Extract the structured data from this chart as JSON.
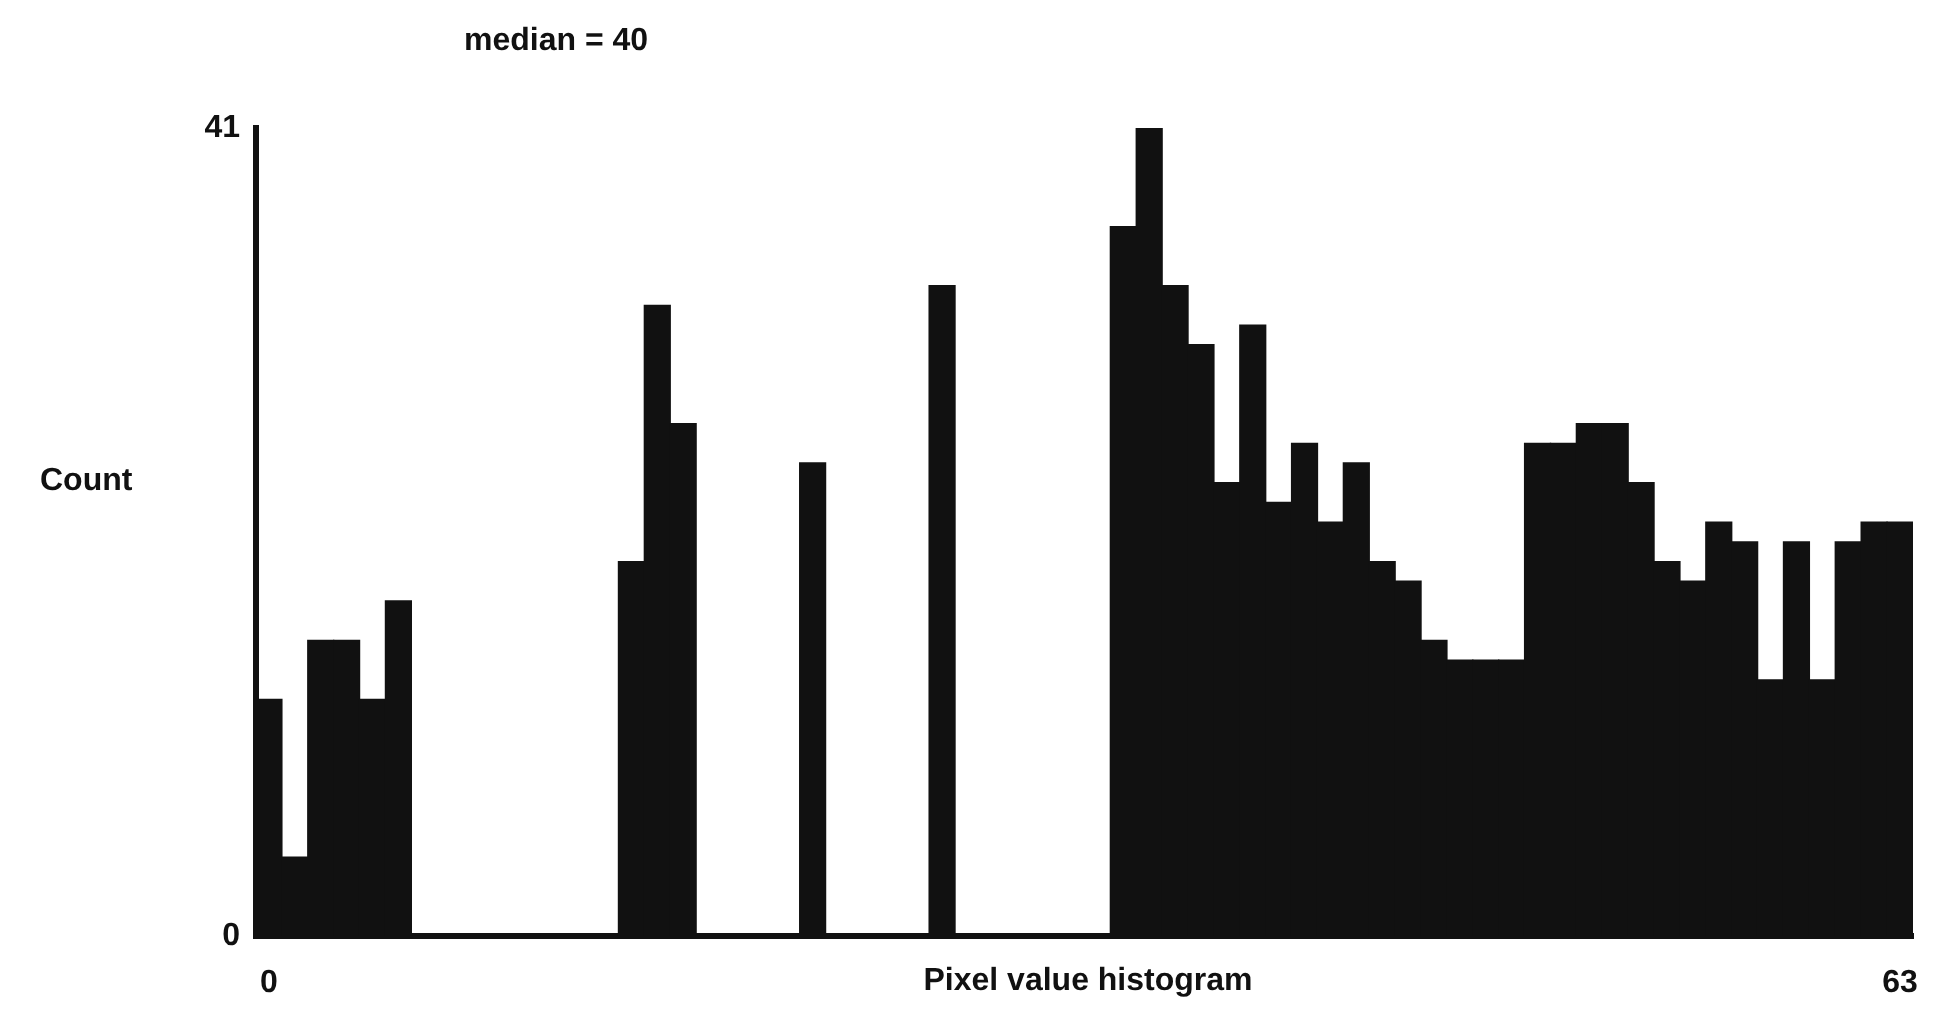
{
  "chart_data": {
    "type": "histogram",
    "title": "median = 40",
    "xlabel": "Pixel value histogram",
    "ylabel": "Count",
    "bins": [
      -0.5,
      0.5,
      1.5,
      2.5,
      3.5,
      4.5,
      5.5,
      6.5,
      7.5,
      8.5,
      9.5,
      10.5,
      11.5,
      12.5,
      13.5,
      14.5,
      15.5,
      16.5,
      17.5,
      18.5,
      19.5,
      20.5,
      21.5,
      22.5,
      23.5,
      24.5,
      25.5,
      26.5,
      27.5,
      28.5,
      29.5,
      30.5,
      31.5,
      32.5,
      33.5,
      34.5,
      35.5,
      36.5,
      37.5,
      38.5,
      39.5,
      40.5,
      41.5,
      42.5,
      43.5,
      44.5,
      45.5,
      46.5,
      47.5,
      48.5,
      49.5,
      50.5,
      51.5,
      52.5,
      53.5,
      54.5,
      55.5,
      56.5,
      57.5,
      58.5,
      59.5,
      60.5,
      61.5,
      62.5,
      63.5
    ],
    "values": [
      12,
      4,
      15,
      15,
      12,
      17,
      0,
      0,
      0,
      0,
      0,
      0,
      0,
      0,
      19,
      32,
      26,
      0,
      0,
      0,
      0,
      24,
      0,
      0,
      0,
      0,
      33,
      0,
      0,
      0,
      0,
      0,
      0,
      36,
      41,
      33,
      30,
      23,
      31,
      22,
      25,
      21,
      24,
      19,
      18,
      15,
      14,
      14,
      14,
      25,
      25,
      26,
      26,
      23,
      19,
      18,
      21,
      20,
      13,
      20,
      13,
      20,
      21,
      21
    ],
    "color": "#111111",
    "xlim": [
      -0.5,
      63.5
    ],
    "xticks": [
      0,
      63
    ],
    "ylim": [
      0,
      41
    ],
    "yticks": [
      0,
      41
    ],
    "grid": false,
    "legend": false
  }
}
